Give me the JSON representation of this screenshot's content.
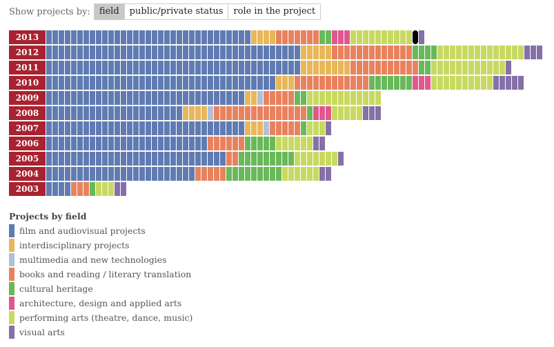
{
  "toolbar": {
    "label": "Show projects by:",
    "buttons": [
      "field",
      "public/private status",
      "role in the project"
    ],
    "active": "field"
  },
  "chart_data": {
    "type": "unit-bar",
    "title": "Projects by field",
    "fields": [
      {
        "key": "film",
        "label": "film and audiovisual projects",
        "color": "#5f7bb2"
      },
      {
        "key": "interdisciplinary",
        "label": "interdisciplinary projects",
        "color": "#e8b75a"
      },
      {
        "key": "multimedia",
        "label": "multimedia and new technologies",
        "color": "#b2bfdb"
      },
      {
        "key": "books",
        "label": "books and reading / literary translation",
        "color": "#e8825e"
      },
      {
        "key": "heritage",
        "label": "cultural heritage",
        "color": "#69b85a"
      },
      {
        "key": "architecture",
        "label": "architecture, design and applied arts",
        "color": "#e0578e"
      },
      {
        "key": "performing",
        "label": "performing arts (theatre, dance, music)",
        "color": "#c8d962"
      },
      {
        "key": "visual",
        "label": "visual arts",
        "color": "#8570a8"
      }
    ],
    "years": [
      {
        "year": "2013",
        "counts": [
          33,
          4,
          0,
          7,
          2,
          3,
          11,
          1
        ]
      },
      {
        "year": "2012",
        "counts": [
          41,
          5,
          0,
          13,
          4,
          0,
          14,
          3
        ]
      },
      {
        "year": "2011",
        "counts": [
          41,
          8,
          0,
          11,
          2,
          0,
          12,
          1
        ]
      },
      {
        "year": "2010",
        "counts": [
          37,
          3,
          0,
          12,
          7,
          3,
          10,
          5
        ]
      },
      {
        "year": "2009",
        "counts": [
          32,
          2,
          1,
          5,
          2,
          0,
          12,
          0
        ]
      },
      {
        "year": "2008",
        "counts": [
          22,
          4,
          1,
          15,
          1,
          3,
          5,
          3
        ]
      },
      {
        "year": "2007",
        "counts": [
          32,
          3,
          1,
          5,
          1,
          0,
          3,
          1
        ]
      },
      {
        "year": "2006",
        "counts": [
          26,
          0,
          0,
          6,
          5,
          0,
          6,
          2
        ]
      },
      {
        "year": "2005",
        "counts": [
          29,
          0,
          0,
          2,
          9,
          0,
          7,
          1
        ]
      },
      {
        "year": "2004",
        "counts": [
          24,
          0,
          0,
          5,
          9,
          0,
          6,
          2
        ]
      },
      {
        "year": "2003",
        "counts": [
          4,
          0,
          0,
          3,
          1,
          0,
          3,
          2
        ]
      }
    ],
    "highlight": {
      "year": "2013",
      "field": "performing"
    }
  }
}
